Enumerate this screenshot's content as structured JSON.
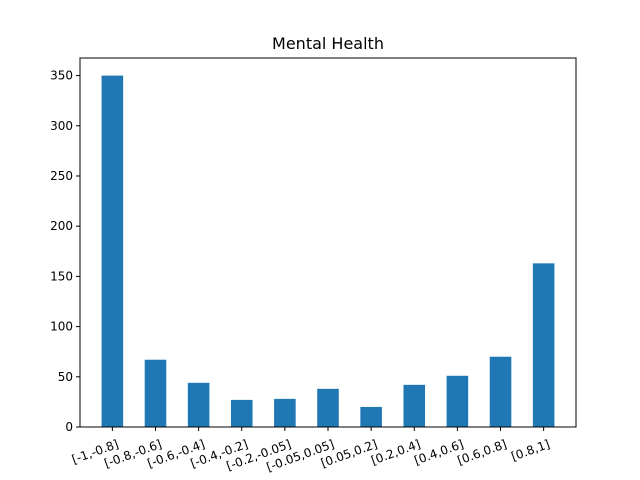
{
  "chart_data": {
    "type": "bar",
    "title": "Mental Health",
    "xlabel": "",
    "ylabel": "",
    "categories": [
      "[-1,-0.8]",
      "[-0.8,-0.6]",
      "[-0.6,-0.4]",
      "[-0.4,-0.2]",
      "[-0.2,-0.05]",
      "[-0.05,0.05]",
      "[0.05,0.2]",
      "[0.2,0.4]",
      "[0.4,0.6]",
      "[0.6,0.8]",
      "[0.8,1]"
    ],
    "values": [
      350,
      67,
      44,
      27,
      28,
      38,
      20,
      42,
      51,
      70,
      163
    ],
    "ylim": [
      0,
      367.5
    ],
    "yticks": [
      0,
      50,
      100,
      150,
      200,
      250,
      300,
      350
    ],
    "grid": false,
    "legend": "none",
    "x_tick_rotation_deg": 20,
    "bar_color": "#1f77b4"
  }
}
